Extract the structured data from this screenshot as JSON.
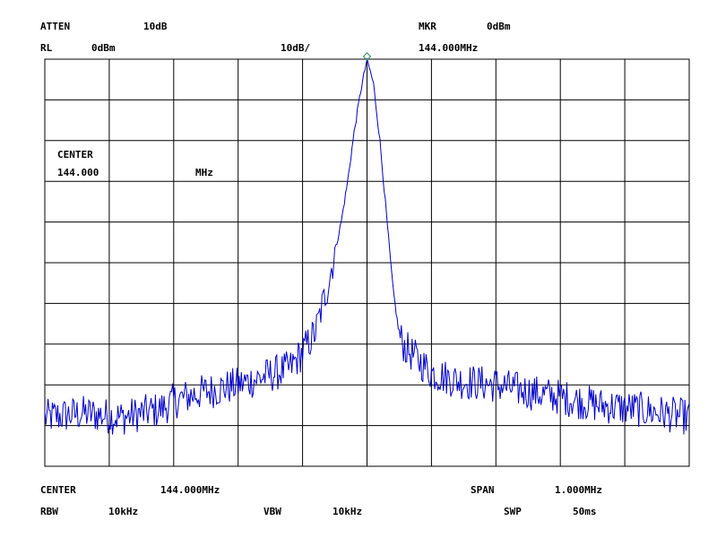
{
  "header": {
    "atten_label": "ATTEN",
    "atten_value": "10dB",
    "rl_label": "RL",
    "rl_value": "0dBm",
    "scale": "10dB/",
    "mkr_label": "MKR",
    "mkr_level": "0dBm",
    "mkr_freq": "144.000MHz"
  },
  "overlay": {
    "center_label": "CENTER",
    "center_value": "144.000",
    "center_unit": "MHz"
  },
  "footer": {
    "center_label": "CENTER",
    "center_value": "144.000MHz",
    "span_label": "SPAN",
    "span_value": "1.000MHz",
    "rbw_label": "RBW",
    "rbw_value": "10kHz",
    "vbw_label": "VBW",
    "vbw_value": "10kHz",
    "swp_label": "SWP",
    "swp_value": "50ms"
  },
  "colors": {
    "trace": "#0000cc",
    "grid": "#000000",
    "marker": "#2e8b57"
  },
  "chart_data": {
    "type": "line",
    "x_unit": "MHz",
    "y_unit": "dBm",
    "xlim": [
      143.5,
      144.5
    ],
    "ylim": [
      -100,
      0
    ],
    "x_divisions": 10,
    "y_divisions": 10,
    "grid": true,
    "marker": {
      "x": 144.0,
      "y": 0
    },
    "series": [
      {
        "x": [
          143.5,
          143.56,
          143.62,
          143.68,
          143.7,
          143.74,
          143.8,
          143.84,
          143.88,
          143.9,
          143.92,
          143.94,
          143.96,
          143.97,
          143.98,
          143.99,
          144.0,
          144.01,
          144.02,
          144.03,
          144.04,
          144.05,
          144.06,
          144.1,
          144.14,
          144.2,
          144.26,
          144.3,
          144.36,
          144.42,
          144.5
        ],
        "y": [
          -88,
          -87,
          -88,
          -86,
          -84,
          -82,
          -80,
          -78,
          -76,
          -72,
          -67,
          -55,
          -40,
          -30,
          -18,
          -8,
          0,
          -6,
          -20,
          -38,
          -56,
          -68,
          -71,
          -77,
          -79,
          -80,
          -82,
          -83,
          -85,
          -86,
          -88
        ]
      }
    ]
  }
}
